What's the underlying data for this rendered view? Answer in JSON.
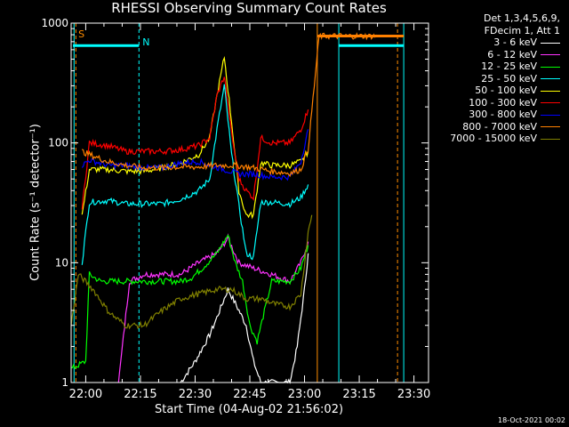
{
  "chart_data": {
    "type": "line",
    "title": "RHESSI Observing Summary Count Rates",
    "xlabel": "Start Time (04-Aug-02 21:56:02)",
    "ylabel": "Count Rate (s⁻¹ detector⁻¹)",
    "yscale": "log",
    "ylim": [
      1,
      1000
    ],
    "xlim_minutes": [
      0,
      98
    ],
    "x_ticks": [
      "22:00",
      "22:15",
      "22:30",
      "22:45",
      "23:00",
      "23:15",
      "23:30"
    ],
    "y_ticks": [
      "1",
      "10",
      "100",
      "1000"
    ],
    "legend_header": [
      "Det 1,3,4,5,6,9,",
      "FDecim 1, Att 1"
    ],
    "flags": [
      {
        "label": "S",
        "color": "#ff8c00"
      },
      {
        "label": "N",
        "color": "#00ffff"
      }
    ],
    "footer": "18-Oct-2021 00:02",
    "series": [
      {
        "name": "3 - 6 keV",
        "color": "#ffffff",
        "points": [
          [
            30,
            1
          ],
          [
            34,
            1.5
          ],
          [
            38,
            2.5
          ],
          [
            40,
            3.5
          ],
          [
            43,
            6
          ],
          [
            46,
            4
          ],
          [
            48,
            3
          ],
          [
            50,
            1.5
          ],
          [
            52,
            1
          ],
          [
            60,
            1
          ],
          [
            62,
            2
          ],
          [
            64,
            6
          ],
          [
            65,
            12
          ]
        ]
      },
      {
        "name": "6 - 12 keV",
        "color": "#ff33ff",
        "points": [
          [
            13,
            1
          ],
          [
            16,
            7
          ],
          [
            20,
            8
          ],
          [
            25,
            8
          ],
          [
            30,
            8
          ],
          [
            35,
            10
          ],
          [
            40,
            12
          ],
          [
            43,
            16
          ],
          [
            46,
            10
          ],
          [
            50,
            9
          ],
          [
            55,
            8
          ],
          [
            60,
            7
          ],
          [
            63,
            10
          ],
          [
            65,
            15
          ]
        ]
      },
      {
        "name": "12 - 25 keV",
        "color": "#00ff00",
        "points": [
          [
            0,
            1.3
          ],
          [
            4,
            1.5
          ],
          [
            5,
            8
          ],
          [
            8,
            7
          ],
          [
            12,
            7
          ],
          [
            16,
            7
          ],
          [
            20,
            7
          ],
          [
            25,
            7
          ],
          [
            30,
            7
          ],
          [
            33,
            7.5
          ],
          [
            36,
            9
          ],
          [
            40,
            12
          ],
          [
            43,
            17
          ],
          [
            45,
            10
          ],
          [
            47,
            7
          ],
          [
            49,
            3
          ],
          [
            51,
            2.2
          ],
          [
            55,
            7
          ],
          [
            60,
            7
          ],
          [
            63,
            9
          ],
          [
            65,
            14
          ]
        ]
      },
      {
        "name": "25 - 50 keV",
        "color": "#00ffff",
        "points": [
          [
            3,
            10
          ],
          [
            5,
            32
          ],
          [
            10,
            33
          ],
          [
            15,
            31
          ],
          [
            20,
            31
          ],
          [
            25,
            31
          ],
          [
            30,
            34
          ],
          [
            35,
            40
          ],
          [
            38,
            50
          ],
          [
            40,
            130
          ],
          [
            42,
            300
          ],
          [
            44,
            80
          ],
          [
            46,
            30
          ],
          [
            48,
            12
          ],
          [
            50,
            11
          ],
          [
            52,
            32
          ],
          [
            55,
            32
          ],
          [
            60,
            31
          ],
          [
            63,
            35
          ],
          [
            65,
            45
          ]
        ]
      },
      {
        "name": "50 - 100 keV",
        "color": "#ffff00",
        "points": [
          [
            3,
            25
          ],
          [
            5,
            60
          ],
          [
            10,
            60
          ],
          [
            15,
            58
          ],
          [
            20,
            58
          ],
          [
            25,
            62
          ],
          [
            30,
            68
          ],
          [
            35,
            80
          ],
          [
            38,
            110
          ],
          [
            40,
            250
          ],
          [
            42,
            520
          ],
          [
            44,
            150
          ],
          [
            46,
            40
          ],
          [
            48,
            25
          ],
          [
            50,
            25
          ],
          [
            52,
            68
          ],
          [
            55,
            65
          ],
          [
            60,
            65
          ],
          [
            63,
            70
          ],
          [
            65,
            85
          ]
        ]
      },
      {
        "name": "100 - 300 keV",
        "color": "#ff0000",
        "points": [
          [
            3,
            28
          ],
          [
            5,
            100
          ],
          [
            10,
            95
          ],
          [
            15,
            85
          ],
          [
            20,
            85
          ],
          [
            25,
            85
          ],
          [
            30,
            88
          ],
          [
            35,
            95
          ],
          [
            38,
            110
          ],
          [
            40,
            250
          ],
          [
            42,
            360
          ],
          [
            44,
            120
          ],
          [
            46,
            50
          ],
          [
            48,
            40
          ],
          [
            50,
            35
          ],
          [
            52,
            110
          ],
          [
            55,
            100
          ],
          [
            60,
            100
          ],
          [
            63,
            130
          ],
          [
            65,
            190
          ]
        ]
      },
      {
        "name": "300 - 800 keV",
        "color": "#0000ff",
        "points": [
          [
            3,
            65
          ],
          [
            5,
            72
          ],
          [
            10,
            65
          ],
          [
            15,
            65
          ],
          [
            20,
            62
          ],
          [
            25,
            62
          ],
          [
            30,
            68
          ],
          [
            35,
            70
          ],
          [
            38,
            65
          ],
          [
            42,
            60
          ],
          [
            46,
            55
          ],
          [
            50,
            55
          ],
          [
            55,
            52
          ],
          [
            60,
            52
          ],
          [
            63,
            70
          ],
          [
            65,
            130
          ]
        ]
      },
      {
        "name": "800 - 7000 keV",
        "color": "#ff8000",
        "points": [
          [
            3,
            85
          ],
          [
            5,
            80
          ],
          [
            10,
            70
          ],
          [
            15,
            65
          ],
          [
            20,
            62
          ],
          [
            25,
            62
          ],
          [
            30,
            63
          ],
          [
            35,
            63
          ],
          [
            40,
            65
          ],
          [
            45,
            65
          ],
          [
            50,
            62
          ],
          [
            55,
            58
          ],
          [
            60,
            56
          ],
          [
            63,
            60
          ],
          [
            65,
            90
          ],
          [
            68,
            780
          ],
          [
            80,
            780
          ],
          [
            84,
            780
          ]
        ]
      },
      {
        "name": "7000 - 15000 keV",
        "color": "#808000",
        "points": [
          [
            0,
            3
          ],
          [
            2,
            8
          ],
          [
            6,
            6
          ],
          [
            10,
            4
          ],
          [
            12,
            3.5
          ],
          [
            15,
            3
          ],
          [
            20,
            3
          ],
          [
            25,
            4
          ],
          [
            30,
            5
          ],
          [
            35,
            5.5
          ],
          [
            40,
            6
          ],
          [
            44,
            6
          ],
          [
            48,
            5
          ],
          [
            52,
            5
          ],
          [
            56,
            4.5
          ],
          [
            60,
            4.3
          ],
          [
            63,
            5.5
          ],
          [
            65,
            18
          ],
          [
            66,
            25
          ]
        ]
      }
    ],
    "verticals": [
      {
        "x": 0.8,
        "color": "#00ffff"
      },
      {
        "x": 1.3,
        "color": "#ff8c00",
        "dashed": true
      },
      {
        "x": 18.6,
        "color": "#00ffff",
        "dashed": true
      },
      {
        "x": 67.5,
        "color": "#ff8c00"
      },
      {
        "x": 73.4,
        "color": "#00ffff"
      },
      {
        "x": 89.5,
        "color": "#ff8c00",
        "dashed": true
      },
      {
        "x": 91.2,
        "color": "#00ffff"
      }
    ],
    "top_bars": [
      {
        "x1": 0.5,
        "x2": 18.6,
        "y": 650,
        "color": "#00ffff"
      },
      {
        "x1": 67.5,
        "x2": 91.2,
        "y": 780,
        "color": "#ff8000"
      },
      {
        "x1": 73.4,
        "x2": 91.2,
        "y": 650,
        "color": "#00ffff"
      }
    ]
  }
}
